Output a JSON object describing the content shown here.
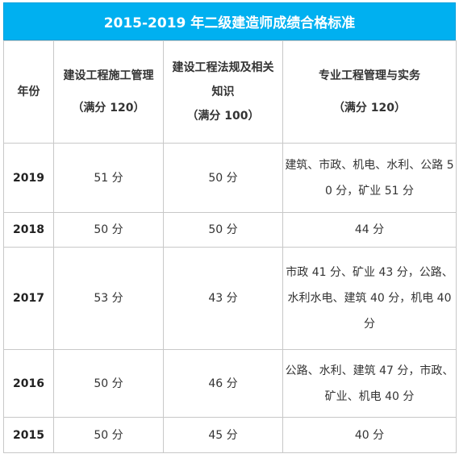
{
  "title": "2015-2019 年二级建造师成绩合格标准",
  "headers": {
    "year": "年份",
    "col1_name": "建设工程施工管理",
    "col1_score": "（满分 120）",
    "col2_name": "建设工程法规及相关知识",
    "col2_score": "（满分 100）",
    "col3_name": "专业工程管理与实务",
    "col3_score": "（满分 120）"
  },
  "rows": [
    {
      "year": "2019",
      "mgmt": "51 分",
      "law": "50 分",
      "practice": "建筑、市政、机电、水利、公路 50 分，矿业 51 分"
    },
    {
      "year": "2018",
      "mgmt": "50 分",
      "law": "50 分",
      "practice": "44 分"
    },
    {
      "year": "2017",
      "mgmt": "53 分",
      "law": "43 分",
      "practice": "市政 41 分、矿业 43 分，公路、水利水电、建筑 40 分，机电 40 分"
    },
    {
      "year": "2016",
      "mgmt": "50 分",
      "law": "46 分",
      "practice": "公路、水利、建筑 47 分，市政、矿业、机电 40 分"
    },
    {
      "year": "2015",
      "mgmt": "50 分",
      "law": "45 分",
      "practice": "40 分"
    }
  ]
}
